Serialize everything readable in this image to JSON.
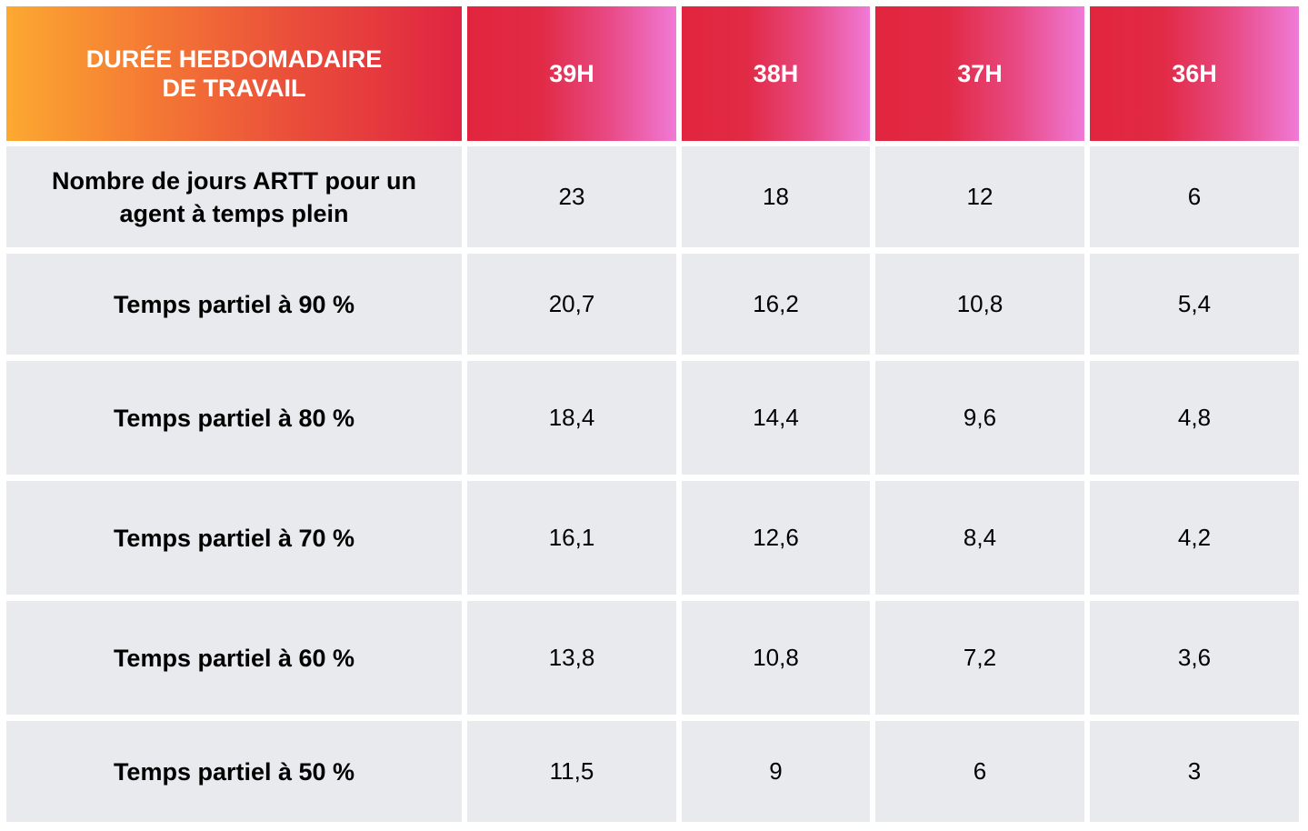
{
  "table": {
    "header": {
      "first": "DURÉE HEBDOMADAIRE DE TRAVAIL",
      "columns": [
        "39H",
        "38H",
        "37H",
        "36H"
      ]
    },
    "rows": [
      {
        "label": "Nombre de jours ARTT pour un agent à temps plein",
        "values": [
          "23",
          "18",
          "12",
          "6"
        ]
      },
      {
        "label": "Temps partiel à 90 %",
        "values": [
          "20,7",
          "16,2",
          "10,8",
          "5,4"
        ]
      },
      {
        "label": "Temps partiel à 80 %",
        "values": [
          "18,4",
          "14,4",
          "9,6",
          "4,8"
        ]
      },
      {
        "label": "Temps partiel à 70 %",
        "values": [
          "16,1",
          "12,6",
          "8,4",
          "4,2"
        ]
      },
      {
        "label": "Temps partiel à 60 %",
        "values": [
          "13,8",
          "10,8",
          "7,2",
          "3,6"
        ]
      },
      {
        "label": "Temps partiel à 50 %",
        "values": [
          "11,5",
          "9",
          "6",
          "3"
        ]
      }
    ]
  }
}
